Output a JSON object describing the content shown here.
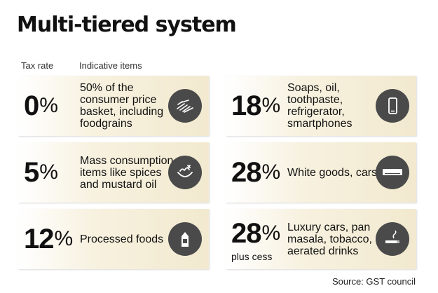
{
  "title": "Multi-tiered system",
  "headers": {
    "rate": "Tax rate",
    "items": "Indicative items"
  },
  "tiers": [
    {
      "rate": "0",
      "pct": "%",
      "note": "",
      "desc": "50% of the consumer price basket, including foodgrains",
      "icon": "grain-icon"
    },
    {
      "rate": "5",
      "pct": "%",
      "note": "",
      "desc": "Mass consumption items like spices and mustard oil",
      "icon": "spices-icon"
    },
    {
      "rate": "12",
      "pct": "%",
      "note": "",
      "desc": "Processed foods",
      "icon": "milk-carton-icon"
    },
    {
      "rate": "18",
      "pct": "%",
      "note": "",
      "desc": "Soaps, oil, toothpaste, refrigerator, smartphones",
      "icon": "smartphone-icon"
    },
    {
      "rate": "28",
      "pct": "%",
      "note": "",
      "desc": "White goods, cars",
      "icon": "air-conditioner-icon"
    },
    {
      "rate": "28",
      "pct": "%",
      "note": "plus cess",
      "desc": "Luxury cars, pan masala, tobacco, aerated drinks",
      "icon": "cigarette-icon"
    }
  ],
  "source": "Source: GST council"
}
